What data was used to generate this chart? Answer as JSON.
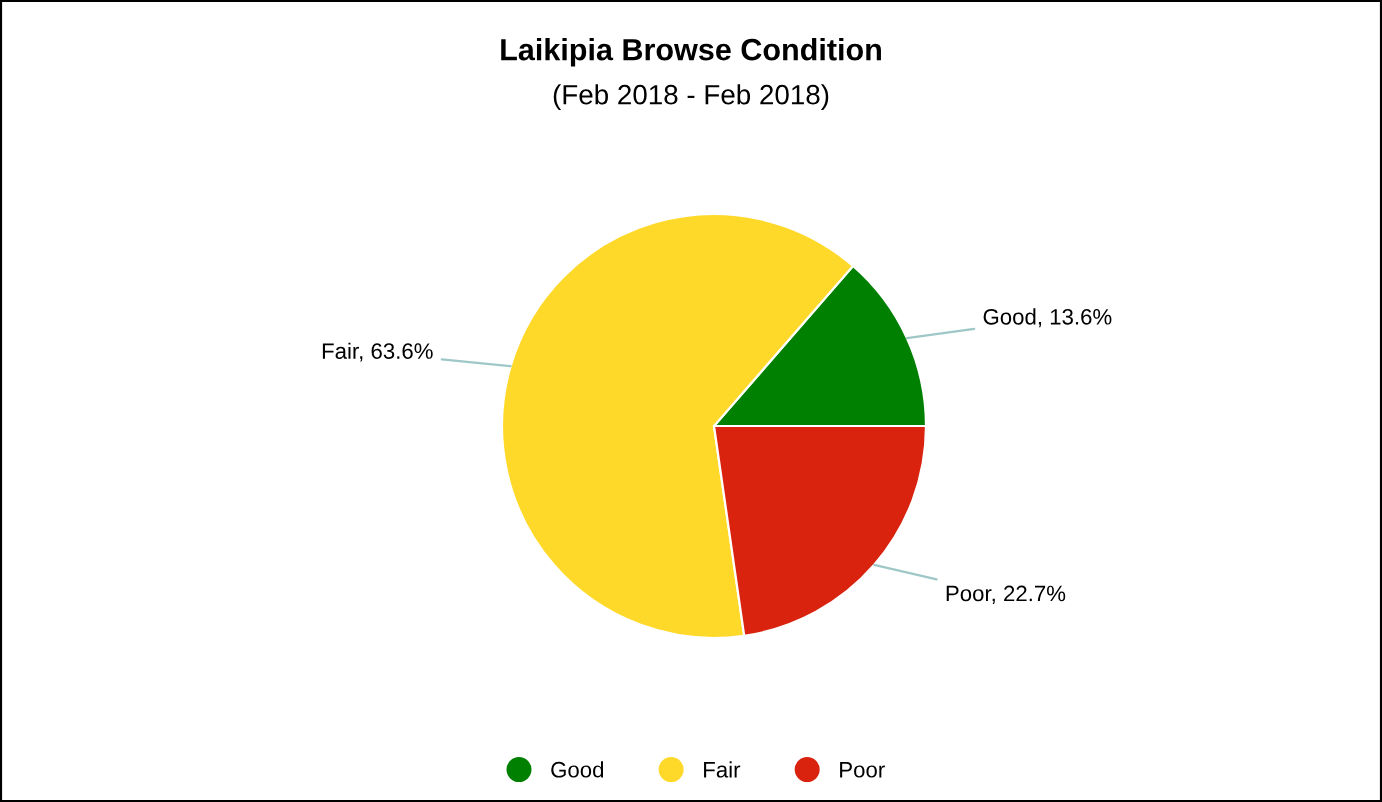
{
  "chart_data": {
    "type": "pie",
    "title": "Laikipia Browse Condition",
    "subtitle": "(Feb 2018 - Feb 2018)",
    "categories": [
      "Good",
      "Fair",
      "Poor"
    ],
    "values": [
      13.6,
      63.6,
      22.7
    ],
    "value_labels": [
      "Good, 13.6%",
      "Fair, 63.6%",
      "Poor, 22.7%"
    ],
    "colors": [
      "#008000",
      "#ffd92a",
      "#d9230f"
    ],
    "legend": "bottom"
  }
}
